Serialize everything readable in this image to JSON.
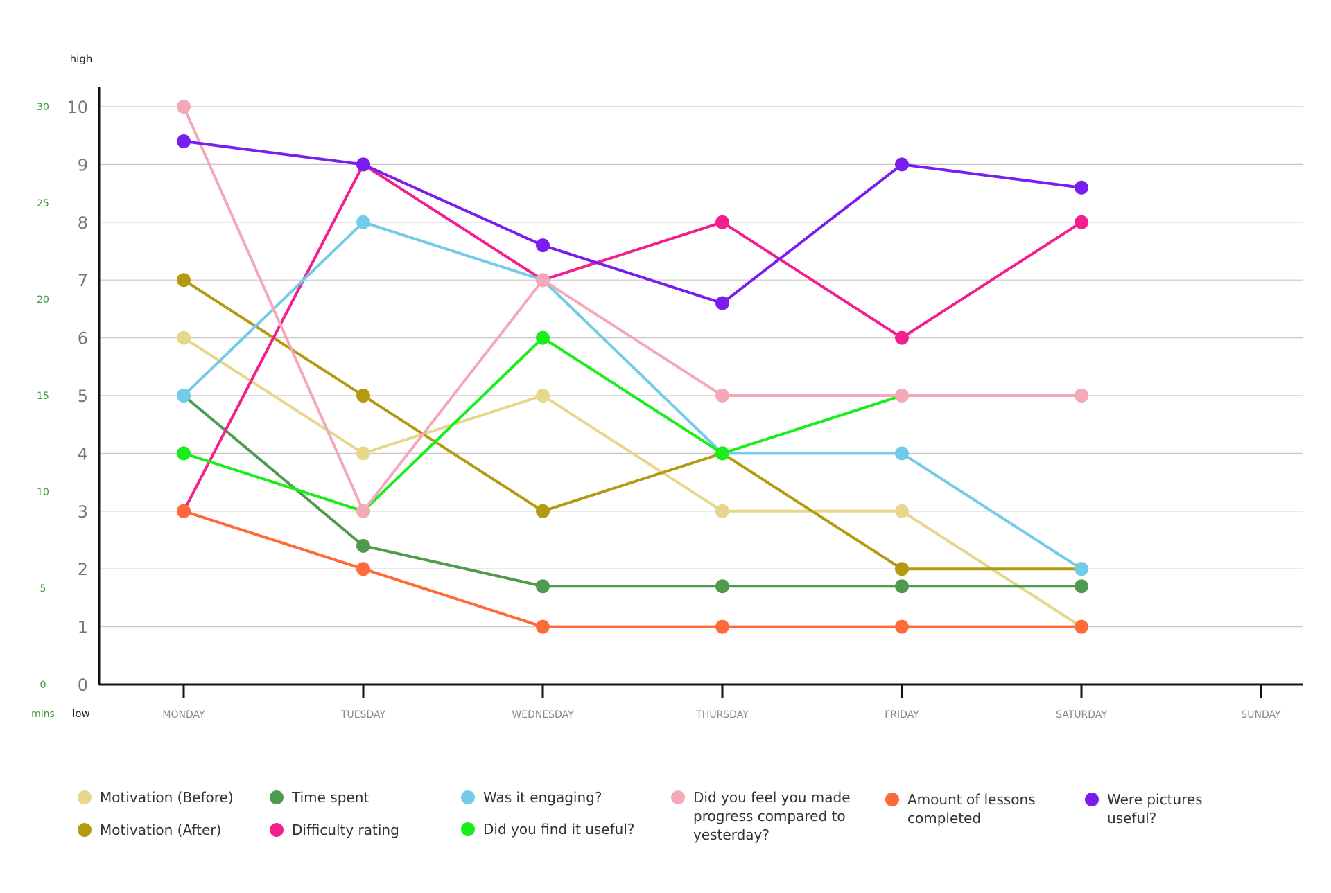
{
  "chart_data": {
    "type": "line",
    "categories": [
      "MONDAY",
      "TUESDAY",
      "WEDNESDAY",
      "THURSDAY",
      "FRIDAY",
      "SATURDAY",
      "SUNDAY"
    ],
    "ylim": [
      0,
      10
    ],
    "y_ticks": [
      "0",
      "1",
      "2",
      "3",
      "4",
      "5",
      "6",
      "7",
      "8",
      "9",
      "10"
    ],
    "secondary_y": {
      "unit_label": "mins",
      "ticks": [
        "0",
        "5",
        "10",
        "15",
        "20",
        "25",
        "30"
      ],
      "color": "#3a9a3a"
    },
    "y_top_label": "high",
    "y_bottom_label": "low",
    "grid": true,
    "legend_position": "bottom",
    "series": [
      {
        "name": "Motivation (Before)",
        "color": "#e6d78a",
        "values": [
          6,
          4,
          5,
          3,
          3,
          1,
          null
        ]
      },
      {
        "name": "Motivation (After)",
        "color": "#b39a10",
        "values": [
          7,
          5,
          3,
          4,
          2,
          2,
          null
        ]
      },
      {
        "name": "Time spent",
        "color": "#4e9a4e",
        "values": [
          5,
          2.4,
          1.7,
          1.7,
          1.7,
          1.7,
          null
        ]
      },
      {
        "name": "Difficulty rating",
        "color": "#f21f8c",
        "values": [
          3,
          9,
          7,
          8,
          6,
          8,
          null
        ]
      },
      {
        "name": "Was it engaging?",
        "color": "#72cbea",
        "values": [
          5,
          8,
          7,
          4,
          4,
          2,
          null
        ]
      },
      {
        "name": "Did you find it useful?",
        "color": "#1aee1a",
        "values": [
          4,
          3,
          6,
          4,
          5,
          5,
          null
        ]
      },
      {
        "name": "Did you feel you made progress compared to yesterday?",
        "color": "#f5a9b8",
        "values": [
          10,
          3,
          7,
          5,
          5,
          5,
          null
        ]
      },
      {
        "name": "Amount of lessons completed",
        "color": "#ff6a3a",
        "values": [
          3,
          2,
          1,
          1,
          1,
          1,
          null
        ]
      },
      {
        "name": "Were pictures useful?",
        "color": "#7a1ef0",
        "values": [
          9.4,
          9,
          7.6,
          6.6,
          9,
          8.6,
          null
        ]
      }
    ]
  },
  "legend": [
    {
      "label": "Motivation (Before)",
      "color": "#e6d78a"
    },
    {
      "label": "Motivation (After)",
      "color": "#b39a10"
    },
    {
      "label": "Time spent",
      "color": "#4e9a4e"
    },
    {
      "label": "Difficulty rating",
      "color": "#f21f8c"
    },
    {
      "label": "Was it engaging?",
      "color": "#72cbea"
    },
    {
      "label": "Did you find it useful?",
      "color": "#1aee1a"
    },
    {
      "label": "Did you feel you made\nprogress compared to\nyesterday?",
      "color": "#f5a9b8"
    },
    {
      "label": "Amount of lessons\ncompleted",
      "color": "#ff6a3a"
    },
    {
      "label": "Were pictures\nuseful?",
      "color": "#7a1ef0"
    }
  ]
}
